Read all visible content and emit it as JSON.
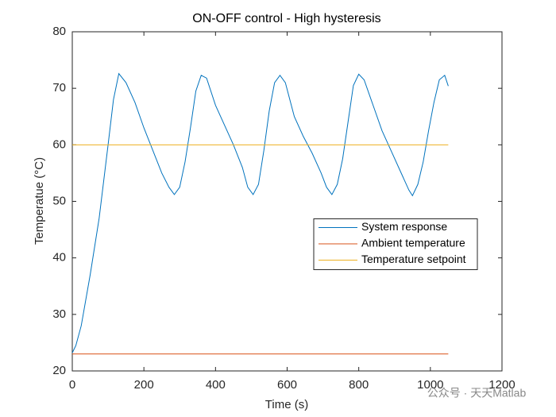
{
  "chart_data": {
    "type": "line",
    "title": "ON-OFF control - High hysteresis",
    "xlabel": "Time (s)",
    "ylabel": "Temperatue (°C)",
    "xlim": [
      0,
      1200
    ],
    "xticks": [
      0,
      200,
      400,
      600,
      800,
      1000,
      1200
    ],
    "ylim": [
      20,
      80
    ],
    "yticks": [
      20,
      30,
      40,
      50,
      60,
      70,
      80
    ],
    "grid": false,
    "legend_location": "east",
    "series": [
      {
        "name": "System response",
        "color": "#0072bd",
        "x": [
          0,
          10,
          25,
          50,
          75,
          100,
          115,
          130,
          150,
          175,
          200,
          225,
          250,
          270,
          285,
          300,
          315,
          330,
          345,
          360,
          375,
          400,
          425,
          450,
          475,
          490,
          505,
          520,
          535,
          550,
          565,
          580,
          595,
          620,
          645,
          670,
          695,
          710,
          725,
          740,
          755,
          770,
          785,
          800,
          815,
          840,
          865,
          890,
          915,
          940,
          950,
          965,
          980,
          995,
          1010,
          1025,
          1040,
          1050
        ],
        "values": [
          23.2,
          24.5,
          28,
          37,
          47,
          60,
          68,
          72.6,
          71,
          67.5,
          63,
          59,
          55,
          52.5,
          51.2,
          52.5,
          57,
          63,
          69.5,
          72.3,
          71.8,
          67,
          63.5,
          60,
          56,
          52.5,
          51.2,
          53,
          59,
          66,
          71,
          72.3,
          71,
          65,
          61.5,
          58.5,
          55,
          52.5,
          51.2,
          53,
          57.5,
          64,
          70.5,
          72.5,
          71.5,
          67,
          62.5,
          59,
          55.5,
          52,
          51,
          53,
          57,
          62.5,
          67.5,
          71.5,
          72.3,
          70.4
        ]
      },
      {
        "name": "Ambient temperature",
        "color": "#d95319",
        "x": [
          0,
          1050
        ],
        "values": [
          23,
          23
        ]
      },
      {
        "name": "Temperature setpoint",
        "color": "#edb120",
        "x": [
          0,
          1050
        ],
        "values": [
          60,
          60
        ]
      }
    ],
    "watermark": "公众号 · 天天Matlab"
  }
}
